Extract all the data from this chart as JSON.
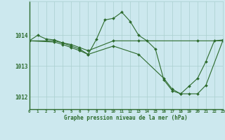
{
  "title": "Graphe pression niveau de la mer (hPa)",
  "background_color": "#cce8ee",
  "grid_color": "#aacfcf",
  "line_color": "#2d6b2d",
  "x_min": 0,
  "x_max": 23,
  "y_min": 1011.6,
  "y_max": 1015.1,
  "y_ticks": [
    1012,
    1013,
    1014
  ],
  "series1": [
    [
      0,
      1013.82
    ],
    [
      1,
      1014.0
    ],
    [
      2,
      1013.88
    ],
    [
      3,
      1013.85
    ],
    [
      4,
      1013.75
    ],
    [
      5,
      1013.65
    ],
    [
      6,
      1013.55
    ],
    [
      7,
      1013.38
    ],
    [
      8,
      1013.88
    ],
    [
      9,
      1014.5
    ],
    [
      10,
      1014.55
    ],
    [
      11,
      1014.75
    ],
    [
      12,
      1014.45
    ],
    [
      13,
      1014.0
    ],
    [
      14,
      1013.82
    ],
    [
      15,
      1013.55
    ],
    [
      16,
      1012.55
    ],
    [
      17,
      1012.2
    ],
    [
      18,
      1012.1
    ],
    [
      19,
      1012.35
    ],
    [
      20,
      1012.6
    ],
    [
      21,
      1013.15
    ],
    [
      22,
      1013.82
    ],
    [
      23,
      1013.85
    ]
  ],
  "series2": [
    [
      0,
      1013.82
    ],
    [
      3,
      1013.82
    ],
    [
      4,
      1013.75
    ],
    [
      5,
      1013.7
    ],
    [
      6,
      1013.6
    ],
    [
      7,
      1013.5
    ],
    [
      10,
      1013.82
    ],
    [
      13,
      1013.82
    ],
    [
      20,
      1013.82
    ],
    [
      23,
      1013.82
    ]
  ],
  "series3": [
    [
      0,
      1013.82
    ],
    [
      3,
      1013.78
    ],
    [
      4,
      1013.7
    ],
    [
      5,
      1013.6
    ],
    [
      6,
      1013.5
    ],
    [
      7,
      1013.38
    ],
    [
      10,
      1013.65
    ],
    [
      13,
      1013.38
    ],
    [
      16,
      1012.6
    ],
    [
      17,
      1012.25
    ],
    [
      18,
      1012.1
    ],
    [
      19,
      1012.1
    ],
    [
      20,
      1012.1
    ],
    [
      21,
      1012.38
    ],
    [
      23,
      1013.82
    ]
  ]
}
